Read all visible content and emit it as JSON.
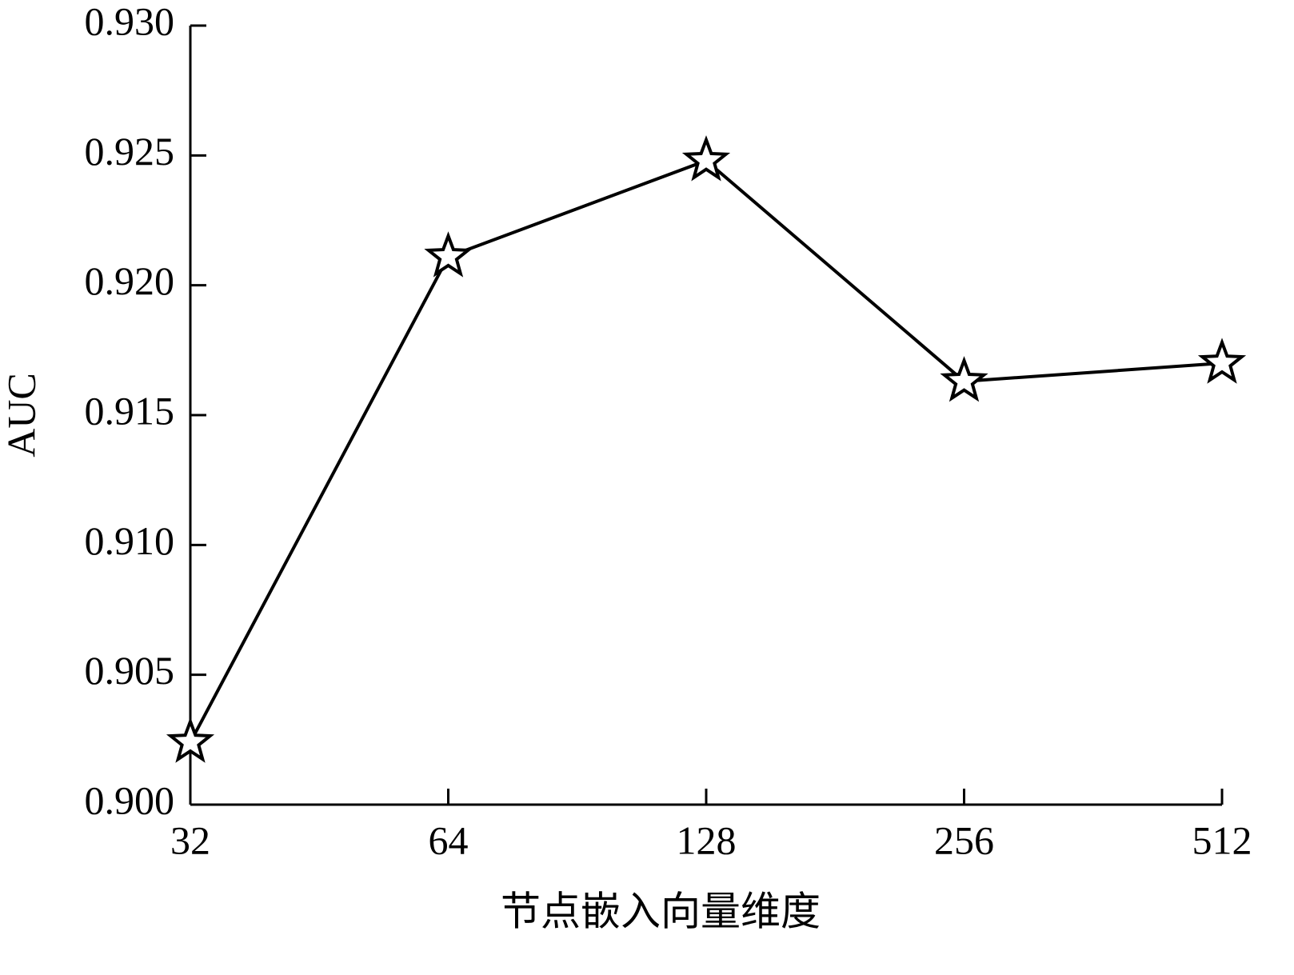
{
  "chart_data": {
    "type": "line",
    "xlabel": "节点嵌入向量维度",
    "ylabel": "AUC",
    "categories": [
      "32",
      "64",
      "128",
      "256",
      "512"
    ],
    "series": [
      {
        "name": "AUC",
        "color": "#000000",
        "values": [
          0.9024,
          0.9211,
          0.9248,
          0.9163,
          0.917
        ]
      }
    ],
    "ylim": [
      0.9,
      0.93
    ],
    "yticks": [
      {
        "value": 0.9,
        "label": "0.900"
      },
      {
        "value": 0.905,
        "label": "0.905"
      },
      {
        "value": 0.91,
        "label": "0.910"
      },
      {
        "value": 0.915,
        "label": "0.915"
      },
      {
        "value": 0.92,
        "label": "0.920"
      },
      {
        "value": 0.925,
        "label": "0.925"
      },
      {
        "value": 0.93,
        "label": "0.930"
      }
    ],
    "marker": "star",
    "grid": false
  }
}
